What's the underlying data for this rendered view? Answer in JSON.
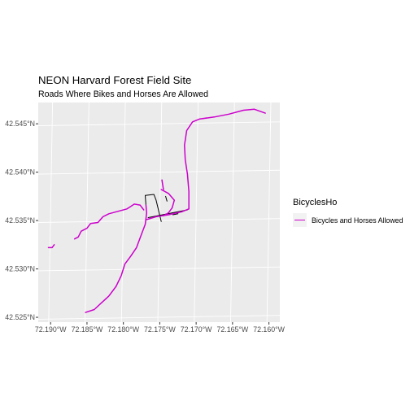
{
  "title": "NEON Harvard Forest Field Site",
  "subtitle": "Roads Where Bikes and Horses Are Allowed",
  "legend": {
    "title": "BicyclesHo",
    "entries": [
      {
        "label": "Bicycles and Horses Allowed",
        "color": "#cc00cc"
      }
    ]
  },
  "colors": {
    "panel": "#ebebeb",
    "grid": "#ffffff",
    "road": "#cc00cc",
    "other_road": "#000000",
    "tick_text": "#4d4d4d"
  },
  "chart_data": {
    "type": "map",
    "x_ticks": [
      {
        "value": -72.19,
        "label": "72.190°W"
      },
      {
        "value": -72.185,
        "label": "72.185°W"
      },
      {
        "value": -72.18,
        "label": "72.180°W"
      },
      {
        "value": -72.175,
        "label": "72.175°W"
      },
      {
        "value": -72.17,
        "label": "72.170°W"
      },
      {
        "value": -72.165,
        "label": "72.165°W"
      },
      {
        "value": -72.16,
        "label": "72.160°W"
      }
    ],
    "y_ticks": [
      {
        "value": 42.545,
        "label": "42.545°N"
      },
      {
        "value": 42.54,
        "label": "42.540°N"
      },
      {
        "value": 42.535,
        "label": "42.535°N"
      },
      {
        "value": 42.53,
        "label": "42.530°N"
      },
      {
        "value": 42.525,
        "label": "42.525°N"
      }
    ],
    "xlim": [
      -72.1917,
      -72.1585
    ],
    "ylim": [
      42.5245,
      42.5472
    ],
    "series": [
      {
        "name": "Bicycles and Horses Allowed",
        "color": "#cc00cc",
        "lines": [
          [
            [
              -72.1903,
              42.5322
            ],
            [
              -72.1898,
              42.5322
            ],
            [
              -72.1895,
              42.5325
            ]
          ],
          [
            [
              -72.1867,
              42.5331
            ],
            [
              -72.1862,
              42.5333
            ],
            [
              -72.1858,
              42.5339
            ],
            [
              -72.185,
              42.5342
            ],
            [
              -72.1845,
              42.5347
            ],
            [
              -72.1835,
              42.5348
            ],
            [
              -72.1828,
              42.5354
            ],
            [
              -72.182,
              42.5357
            ],
            [
              -72.1805,
              42.536
            ],
            [
              -72.1795,
              42.5362
            ],
            [
              -72.1785,
              42.5367
            ],
            [
              -72.1777,
              42.5366
            ],
            [
              -72.1772,
              42.5361
            ]
          ],
          [
            [
              -72.1852,
              42.5255
            ],
            [
              -72.184,
              42.5258
            ],
            [
              -72.183,
              42.5265
            ],
            [
              -72.182,
              42.5272
            ],
            [
              -72.181,
              42.5282
            ],
            [
              -72.1803,
              42.5293
            ],
            [
              -72.1798,
              42.5305
            ],
            [
              -72.179,
              42.5313
            ],
            [
              -72.1782,
              42.5322
            ],
            [
              -72.1776,
              42.5334
            ],
            [
              -72.177,
              42.5346
            ],
            [
              -72.1768,
              42.5358
            ],
            [
              -72.1769,
              42.5366
            ]
          ],
          [
            [
              -72.1768,
              42.5351
            ],
            [
              -72.1755,
              42.5354
            ],
            [
              -72.1738,
              42.5356
            ],
            [
              -72.172,
              42.5359
            ],
            [
              -72.171,
              42.5362
            ]
          ],
          [
            [
              -72.171,
              42.5362
            ],
            [
              -72.171,
              42.538
            ],
            [
              -72.1712,
              42.5398
            ],
            [
              -72.1715,
              42.5413
            ],
            [
              -72.1716,
              42.5428
            ],
            [
              -72.1713,
              42.5443
            ],
            [
              -72.1705,
              42.5452
            ],
            [
              -72.1695,
              42.5455
            ],
            [
              -72.1675,
              42.5457
            ],
            [
              -72.1655,
              42.546
            ],
            [
              -72.1635,
              42.5464
            ],
            [
              -72.162,
              42.5465
            ],
            [
              -72.1605,
              42.5461
            ]
          ],
          [
            [
              -72.1748,
              42.5382
            ],
            [
              -72.1738,
              42.5378
            ],
            [
              -72.173,
              42.5371
            ],
            [
              -72.1733,
              42.5363
            ],
            [
              -72.1738,
              42.5358
            ],
            [
              -72.1745,
              42.5355
            ]
          ],
          [
            [
              -72.1747,
              42.5392
            ],
            [
              -72.1745,
              42.5382
            ]
          ]
        ]
      },
      {
        "name": "",
        "color": "#000000",
        "lines": [
          [
            [
              -72.1769,
              42.5366
            ],
            [
              -72.177,
              42.5376
            ],
            [
              -72.1758,
              42.5377
            ],
            [
              -72.1755,
              42.5371
            ],
            [
              -72.1748,
              42.5349
            ]
          ],
          [
            [
              -72.1742,
              42.5375
            ],
            [
              -72.174,
              42.537
            ]
          ],
          [
            [
              -72.1766,
              42.5353
            ],
            [
              -72.1712,
              42.5361
            ]
          ],
          [
            [
              -72.1732,
              42.5356
            ],
            [
              -72.1725,
              42.5357
            ]
          ]
        ]
      }
    ]
  }
}
